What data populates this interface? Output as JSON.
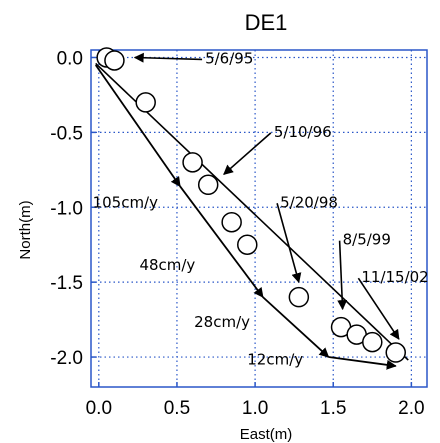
{
  "chart_data": {
    "type": "scatter",
    "title": "DE1",
    "xlabel": "East(m)",
    "ylabel": "North(m)",
    "xlim": [
      -0.05,
      2.1
    ],
    "ylim": [
      -2.2,
      0.05
    ],
    "xticks": [
      "0.0",
      "0.5",
      "1.0",
      "1.5",
      "2.0"
    ],
    "xtick_values": [
      0,
      0.5,
      1.0,
      1.5,
      2.0
    ],
    "yticks": [
      "0.0",
      "-0.5",
      "-1.0",
      "-1.5",
      "-2.0"
    ],
    "ytick_values": [
      0,
      -0.5,
      -1.0,
      -1.5,
      -2.0
    ],
    "grid": true,
    "colors": {
      "grid": "#2a57c8",
      "marker_fill": "#ffffff",
      "marker_edge": "#000000"
    },
    "points": [
      {
        "x": 0.05,
        "y": 0.0
      },
      {
        "x": 0.1,
        "y": -0.02
      },
      {
        "x": 0.3,
        "y": -0.3
      },
      {
        "x": 0.6,
        "y": -0.7
      },
      {
        "x": 0.7,
        "y": -0.85
      },
      {
        "x": 0.85,
        "y": -1.1
      },
      {
        "x": 0.95,
        "y": -1.25
      },
      {
        "x": 1.28,
        "y": -1.6
      },
      {
        "x": 1.55,
        "y": -1.8
      },
      {
        "x": 1.65,
        "y": -1.85
      },
      {
        "x": 1.75,
        "y": -1.9
      },
      {
        "x": 1.9,
        "y": -1.97
      }
    ],
    "date_annotations": [
      {
        "text": "5/6/95",
        "tx": 0.68,
        "ty": -0.04,
        "ax": 0.23,
        "ay": 0.0
      },
      {
        "text": "5/10/96",
        "tx": 1.12,
        "ty": -0.53,
        "ax": 0.8,
        "ay": -0.78
      },
      {
        "text": "5/20/98",
        "tx": 1.16,
        "ty": -1.0,
        "ax": 1.28,
        "ay": -1.5
      },
      {
        "text": "8/5/99",
        "tx": 1.56,
        "ty": -1.25,
        "ax": 1.56,
        "ay": -1.68
      },
      {
        "text": "11/15/02",
        "tx": 1.68,
        "ty": -1.5,
        "ax": 1.92,
        "ay": -1.88
      }
    ],
    "rate_annotations": [
      {
        "text": "105cm/y",
        "tx": -0.04,
        "ty": -1.0
      },
      {
        "text": "48cm/y",
        "tx": 0.26,
        "ty": -1.42
      },
      {
        "text": "28cm/y",
        "tx": 0.61,
        "ty": -1.8
      },
      {
        "text": "12cm/y",
        "tx": 0.95,
        "ty": -2.05
      }
    ],
    "rate_arrows": [
      {
        "x1": -0.02,
        "y1": -0.05,
        "x2": 0.52,
        "y2": -0.86
      },
      {
        "x1": 0.52,
        "y1": -0.86,
        "x2": 1.05,
        "y2": -1.6
      },
      {
        "x1": 1.05,
        "y1": -1.6,
        "x2": 1.47,
        "y2": -2.0
      },
      {
        "x1": 1.47,
        "y1": -2.0,
        "x2": 1.9,
        "y2": -2.06
      }
    ],
    "fit_line": {
      "x1": -0.02,
      "y1": -0.04,
      "x2": 1.98,
      "y2": -2.02
    }
  }
}
